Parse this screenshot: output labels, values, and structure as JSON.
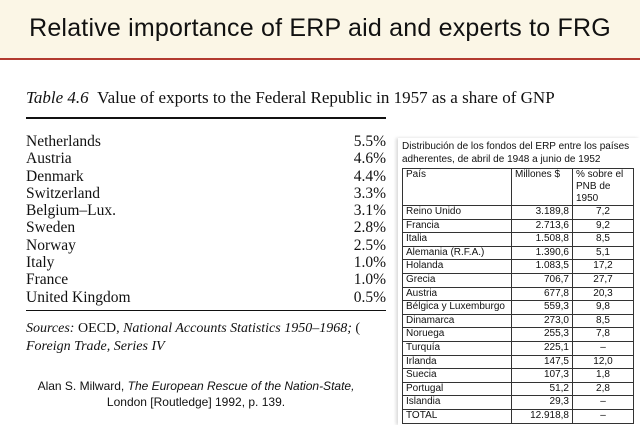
{
  "slide": {
    "title": "Relative importance of ERP aid and experts to FRG"
  },
  "table46": {
    "label": "Table 4.6",
    "caption": "Value of exports to the Federal Republic in 1957 as a share of GNP",
    "rows": [
      {
        "country": "Netherlands",
        "value": "5.5%"
      },
      {
        "country": "Austria",
        "value": "4.6%"
      },
      {
        "country": "Denmark",
        "value": "4.4%"
      },
      {
        "country": "Switzerland",
        "value": "3.3%"
      },
      {
        "country": "Belgium–Lux.",
        "value": "3.1%"
      },
      {
        "country": "Sweden",
        "value": "2.8%"
      },
      {
        "country": "Norway",
        "value": "2.5%"
      },
      {
        "country": "Italy",
        "value": "1.0%"
      },
      {
        "country": "France",
        "value": "1.0%"
      },
      {
        "country": "United Kingdom",
        "value": "0.5%"
      }
    ],
    "sources_label": "Sources:",
    "sources_line1_a": "OECD,",
    "sources_line1_b": "National Accounts Statistics 1950–1968;",
    "sources_line1_c": "(",
    "sources_line2": "Foreign Trade, Series IV"
  },
  "citation": {
    "author": "Alan S. Milward,",
    "book": "The European Rescue of the Nation-State,",
    "publisher": "London [Routledge] 1992, p. 139."
  },
  "erp_table": {
    "heading_line1": "Distribución de los fondos del ERP entre los países",
    "heading_line2": "adherentes, de abril de 1948 a junio de 1952",
    "columns": [
      "País",
      "Millones $",
      "% sobre el PNB de 1950"
    ],
    "rows": [
      {
        "pais": "Reino Unido",
        "millones": "3.189,8",
        "pct": "7,2"
      },
      {
        "pais": "Francia",
        "millones": "2.713,6",
        "pct": "9,2"
      },
      {
        "pais": "Italia",
        "millones": "1.508,8",
        "pct": "8,5"
      },
      {
        "pais": "Alemania (R.F.A.)",
        "millones": "1.390,6",
        "pct": "5,1"
      },
      {
        "pais": "Holanda",
        "millones": "1.083,5",
        "pct": "17,2"
      },
      {
        "pais": "Grecia",
        "millones": "706,7",
        "pct": "27,7"
      },
      {
        "pais": "Austria",
        "millones": "677,8",
        "pct": "20,3"
      },
      {
        "pais": "Bélgica y Luxemburgo",
        "millones": "559,3",
        "pct": "9,8"
      },
      {
        "pais": "Dinamarca",
        "millones": "273,0",
        "pct": "8,5"
      },
      {
        "pais": "Noruega",
        "millones": "255,3",
        "pct": "7,8"
      },
      {
        "pais": "Turquía",
        "millones": "225,1",
        "pct": "–"
      },
      {
        "pais": "Irlanda",
        "millones": "147,5",
        "pct": "12,0"
      },
      {
        "pais": "Suecia",
        "millones": "107,3",
        "pct": "1,8"
      },
      {
        "pais": "Portugal",
        "millones": "51,2",
        "pct": "2,8"
      },
      {
        "pais": "Islandia",
        "millones": "29,3",
        "pct": "–"
      },
      {
        "pais": "TOTAL",
        "millones": "12.918,8",
        "pct": "–"
      }
    ]
  }
}
